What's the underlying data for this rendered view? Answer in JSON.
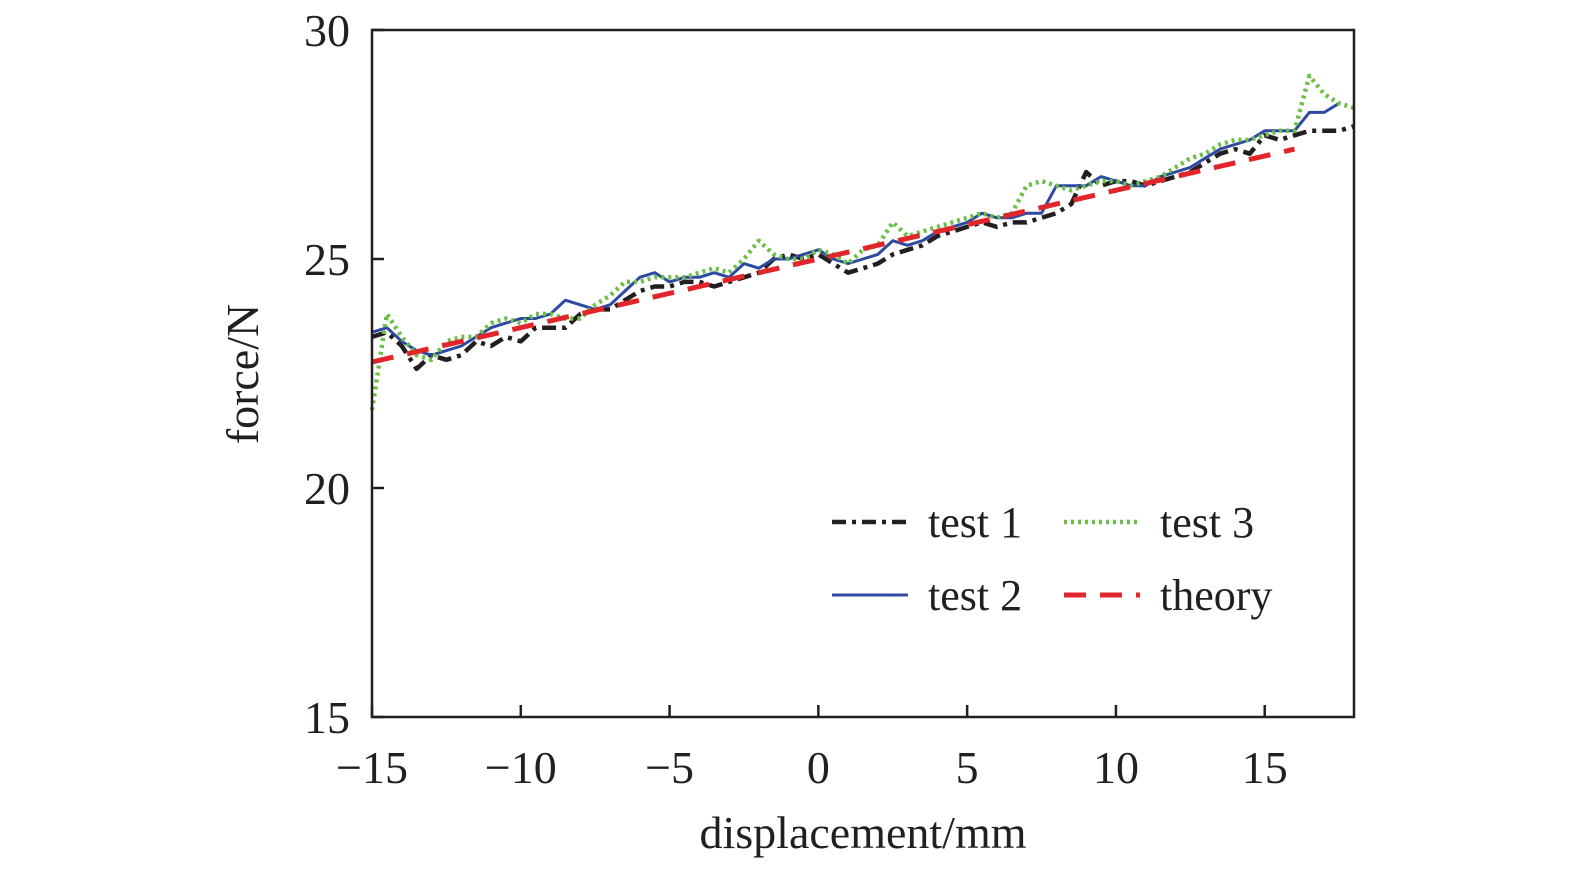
{
  "chart_data": {
    "type": "line",
    "title": "",
    "xlabel": "displacement/mm",
    "ylabel": "force/N",
    "xlim": [
      -15,
      18
    ],
    "ylim": [
      15,
      30
    ],
    "xticks": [
      -15,
      -10,
      -5,
      0,
      5,
      10,
      15
    ],
    "xtick_labels": [
      "−15",
      "−10",
      "−5",
      "0",
      "5",
      "10",
      "15"
    ],
    "yticks": [
      15,
      20,
      25,
      30
    ],
    "ytick_labels": [
      "15",
      "20",
      "25",
      "30"
    ],
    "grid": false,
    "legend_position": "lower-right",
    "series": [
      {
        "name": "test 1",
        "color": "#231f20",
        "style": "dash-dot",
        "x": [
          -15,
          -14.5,
          -14,
          -13.5,
          -13,
          -12.5,
          -12,
          -11.5,
          -11,
          -10.5,
          -10,
          -9.5,
          -9,
          -8.5,
          -8,
          -7.5,
          -7,
          -6.5,
          -6,
          -5.5,
          -5,
          -4.5,
          -4,
          -3.5,
          -3,
          -2.5,
          -2,
          -1.5,
          -1,
          -0.5,
          0,
          0.5,
          1,
          1.5,
          2,
          2.5,
          3,
          3.5,
          4,
          4.5,
          5,
          5.5,
          6,
          6.5,
          7,
          7.5,
          8,
          8.5,
          9,
          9.5,
          10,
          10.5,
          11,
          11.5,
          12,
          12.5,
          13,
          13.5,
          14,
          14.5,
          15,
          15.5,
          16,
          16.5,
          17,
          17.5,
          18
        ],
        "y": [
          23.3,
          23.4,
          23.1,
          22.6,
          22.9,
          22.8,
          22.9,
          23.2,
          23.1,
          23.3,
          23.2,
          23.5,
          23.5,
          23.5,
          23.8,
          23.9,
          23.9,
          24.1,
          24.3,
          24.4,
          24.4,
          24.5,
          24.5,
          24.4,
          24.5,
          24.6,
          24.7,
          25.0,
          25.1,
          25.0,
          25.1,
          24.9,
          24.7,
          24.8,
          24.9,
          25.1,
          25.2,
          25.3,
          25.5,
          25.6,
          25.7,
          25.8,
          25.7,
          25.8,
          25.8,
          25.9,
          26.0,
          26.2,
          26.9,
          26.6,
          26.7,
          26.7,
          26.6,
          26.7,
          26.8,
          26.9,
          27.1,
          27.3,
          27.4,
          27.3,
          27.7,
          27.6,
          27.7,
          27.8,
          27.8,
          27.8,
          27.9
        ]
      },
      {
        "name": "test 2",
        "color": "#2d4aa0",
        "style": "solid",
        "x": [
          -15,
          -14.5,
          -14,
          -13.5,
          -13,
          -12.5,
          -12,
          -11.5,
          -11,
          -10.5,
          -10,
          -9.5,
          -9,
          -8.5,
          -8,
          -7.5,
          -7,
          -6.5,
          -6,
          -5.5,
          -5,
          -4.5,
          -4,
          -3.5,
          -3,
          -2.5,
          -2,
          -1.5,
          -1,
          -0.5,
          0,
          0.5,
          1,
          1.5,
          2,
          2.5,
          3,
          3.5,
          4,
          4.5,
          5,
          5.5,
          6,
          6.5,
          7,
          7.5,
          8,
          8.5,
          9,
          9.5,
          10,
          10.5,
          11,
          11.5,
          12,
          12.5,
          13,
          13.5,
          14,
          14.5,
          15,
          15.5,
          16,
          16.5,
          17,
          17.5
        ],
        "y": [
          23.4,
          23.5,
          23.2,
          23.0,
          22.9,
          23.0,
          23.1,
          23.3,
          23.5,
          23.6,
          23.7,
          23.7,
          23.8,
          24.1,
          24.0,
          23.9,
          24.0,
          24.3,
          24.6,
          24.7,
          24.5,
          24.6,
          24.6,
          24.7,
          24.6,
          24.9,
          24.8,
          25.0,
          25.0,
          25.1,
          25.2,
          25.0,
          24.9,
          25.0,
          25.1,
          25.4,
          25.3,
          25.4,
          25.6,
          25.7,
          25.8,
          26.0,
          25.9,
          25.9,
          26.0,
          26.0,
          26.6,
          26.6,
          26.6,
          26.8,
          26.7,
          26.6,
          26.6,
          26.8,
          26.9,
          27.0,
          27.2,
          27.4,
          27.5,
          27.6,
          27.8,
          27.8,
          27.8,
          28.2,
          28.2,
          28.4
        ]
      },
      {
        "name": "test 3",
        "color": "#6abf45",
        "style": "dotted",
        "x": [
          -15,
          -14.5,
          -14,
          -13.5,
          -13,
          -12.5,
          -12,
          -11.5,
          -11,
          -10.5,
          -10,
          -9.5,
          -9,
          -8.5,
          -8,
          -7.5,
          -7,
          -6.5,
          -6,
          -5.5,
          -5,
          -4.5,
          -4,
          -3.5,
          -3,
          -2.5,
          -2,
          -1.5,
          -1,
          -0.5,
          0,
          0.5,
          1,
          1.5,
          2,
          2.5,
          3,
          3.5,
          4,
          4.5,
          5,
          5.5,
          6,
          6.5,
          7,
          7.5,
          8,
          8.5,
          9,
          9.5,
          10,
          10.5,
          11,
          11.5,
          12,
          12.5,
          13,
          13.5,
          14,
          14.5,
          15,
          15.5,
          16,
          16.5,
          17,
          17.5,
          18
        ],
        "y": [
          21.7,
          23.8,
          23.3,
          22.9,
          22.8,
          23.2,
          23.3,
          23.3,
          23.6,
          23.7,
          23.6,
          23.8,
          23.8,
          23.7,
          23.7,
          24.0,
          24.2,
          24.5,
          24.5,
          24.6,
          24.6,
          24.6,
          24.7,
          24.8,
          24.7,
          25.0,
          25.4,
          25.1,
          25.0,
          25.0,
          25.2,
          25.1,
          24.9,
          25.2,
          25.3,
          25.8,
          25.5,
          25.6,
          25.7,
          25.8,
          25.9,
          26.0,
          25.9,
          26.0,
          26.6,
          26.7,
          26.6,
          26.5,
          26.6,
          26.7,
          26.7,
          26.6,
          26.7,
          26.8,
          27.0,
          27.2,
          27.3,
          27.5,
          27.6,
          27.6,
          27.7,
          27.8,
          27.8,
          29.0,
          28.6,
          28.4,
          28.3
        ]
      },
      {
        "name": "theory",
        "color": "#e0262b",
        "style": "dashed",
        "x": [
          -15,
          16
        ],
        "y": [
          22.75,
          27.4
        ]
      }
    ]
  }
}
